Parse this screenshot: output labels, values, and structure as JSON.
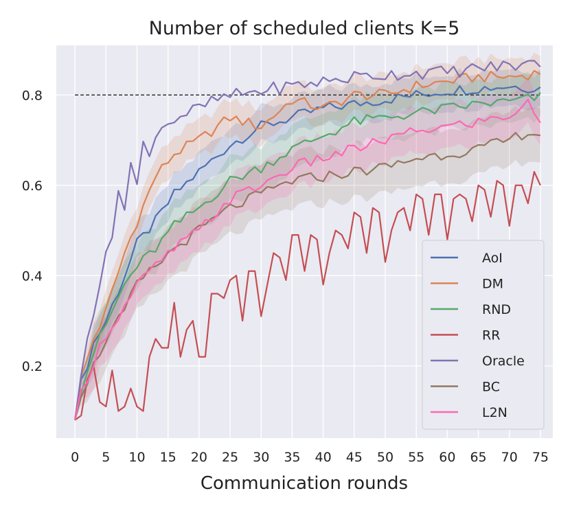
{
  "chart_data": {
    "type": "line",
    "title": "Number of scheduled clients K=5",
    "xlabel": "Communication rounds",
    "ylabel": "",
    "xlim": [
      -3,
      77
    ],
    "ylim": [
      0.04,
      0.91
    ],
    "xticks": [
      0,
      5,
      10,
      15,
      20,
      25,
      30,
      35,
      40,
      45,
      50,
      55,
      60,
      65,
      70,
      75
    ],
    "yticks": [
      0.2,
      0.4,
      0.6,
      0.8
    ],
    "ytick_labels": [
      "0.2",
      "0.4",
      "0.6",
      "0.8"
    ],
    "grid": true,
    "legend_position": "lower-right",
    "reference_line": {
      "y": 0.8,
      "style": "dashed",
      "color": "#222222"
    },
    "series": [
      {
        "name": "AoI",
        "color": "#4c72b0",
        "band": 0.04,
        "anchors": [
          [
            0,
            0.08
          ],
          [
            1,
            0.16
          ],
          [
            3,
            0.25
          ],
          [
            5,
            0.3
          ],
          [
            8,
            0.4
          ],
          [
            10,
            0.47
          ],
          [
            13,
            0.52
          ],
          [
            16,
            0.58
          ],
          [
            20,
            0.63
          ],
          [
            25,
            0.69
          ],
          [
            30,
            0.73
          ],
          [
            35,
            0.75
          ],
          [
            40,
            0.77
          ],
          [
            45,
            0.78
          ],
          [
            50,
            0.79
          ],
          [
            55,
            0.8
          ],
          [
            60,
            0.81
          ],
          [
            65,
            0.815
          ],
          [
            70,
            0.82
          ],
          [
            75,
            0.815
          ]
        ]
      },
      {
        "name": "DM",
        "color": "#dd8452",
        "band": 0.04,
        "anchors": [
          [
            0,
            0.08
          ],
          [
            1,
            0.17
          ],
          [
            3,
            0.26
          ],
          [
            5,
            0.32
          ],
          [
            8,
            0.45
          ],
          [
            10,
            0.52
          ],
          [
            13,
            0.62
          ],
          [
            16,
            0.67
          ],
          [
            20,
            0.7
          ],
          [
            25,
            0.75
          ],
          [
            30,
            0.73
          ],
          [
            35,
            0.79
          ],
          [
            40,
            0.77
          ],
          [
            45,
            0.8
          ],
          [
            50,
            0.8
          ],
          [
            55,
            0.82
          ],
          [
            60,
            0.83
          ],
          [
            65,
            0.84
          ],
          [
            70,
            0.84
          ],
          [
            75,
            0.85
          ]
        ]
      },
      {
        "name": "RND",
        "color": "#55a868",
        "band": 0.05,
        "anchors": [
          [
            0,
            0.08
          ],
          [
            1,
            0.15
          ],
          [
            3,
            0.23
          ],
          [
            5,
            0.29
          ],
          [
            8,
            0.38
          ],
          [
            10,
            0.42
          ],
          [
            13,
            0.46
          ],
          [
            16,
            0.51
          ],
          [
            20,
            0.55
          ],
          [
            25,
            0.61
          ],
          [
            30,
            0.64
          ],
          [
            35,
            0.68
          ],
          [
            40,
            0.71
          ],
          [
            45,
            0.74
          ],
          [
            50,
            0.75
          ],
          [
            55,
            0.76
          ],
          [
            60,
            0.77
          ],
          [
            65,
            0.78
          ],
          [
            70,
            0.785
          ],
          [
            75,
            0.795
          ]
        ]
      },
      {
        "name": "RR",
        "color": "#c44e52",
        "band": 0,
        "values": [
          0.08,
          0.09,
          0.17,
          0.2,
          0.12,
          0.11,
          0.19,
          0.1,
          0.11,
          0.15,
          0.11,
          0.1,
          0.22,
          0.26,
          0.24,
          0.24,
          0.34,
          0.22,
          0.28,
          0.3,
          0.22,
          0.22,
          0.36,
          0.36,
          0.35,
          0.39,
          0.4,
          0.3,
          0.41,
          0.41,
          0.31,
          0.38,
          0.45,
          0.44,
          0.39,
          0.49,
          0.49,
          0.41,
          0.49,
          0.48,
          0.38,
          0.45,
          0.5,
          0.49,
          0.46,
          0.54,
          0.53,
          0.45,
          0.55,
          0.54,
          0.43,
          0.5,
          0.54,
          0.55,
          0.5,
          0.58,
          0.57,
          0.49,
          0.58,
          0.58,
          0.48,
          0.57,
          0.58,
          0.57,
          0.52,
          0.6,
          0.59,
          0.53,
          0.61,
          0.6,
          0.51,
          0.6,
          0.6,
          0.56,
          0.63,
          0.6
        ]
      },
      {
        "name": "Oracle",
        "color": "#8172b3",
        "band": 0,
        "anchors": [
          [
            0,
            0.08
          ],
          [
            1,
            0.17
          ],
          [
            2,
            0.26
          ],
          [
            4,
            0.39
          ],
          [
            5,
            0.46
          ],
          [
            6,
            0.47
          ],
          [
            7,
            0.59
          ],
          [
            8,
            0.56
          ],
          [
            9,
            0.65
          ],
          [
            10,
            0.6
          ],
          [
            11,
            0.69
          ],
          [
            12,
            0.66
          ],
          [
            13,
            0.72
          ],
          [
            15,
            0.74
          ],
          [
            18,
            0.76
          ],
          [
            20,
            0.77
          ],
          [
            23,
            0.79
          ],
          [
            26,
            0.8
          ],
          [
            30,
            0.81
          ],
          [
            35,
            0.82
          ],
          [
            40,
            0.83
          ],
          [
            45,
            0.84
          ],
          [
            50,
            0.845
          ],
          [
            55,
            0.85
          ],
          [
            60,
            0.85
          ],
          [
            65,
            0.86
          ],
          [
            70,
            0.865
          ],
          [
            75,
            0.87
          ]
        ]
      },
      {
        "name": "BC",
        "color": "#937860",
        "band": 0.06,
        "anchors": [
          [
            0,
            0.08
          ],
          [
            1,
            0.14
          ],
          [
            3,
            0.2
          ],
          [
            5,
            0.26
          ],
          [
            8,
            0.32
          ],
          [
            10,
            0.38
          ],
          [
            13,
            0.42
          ],
          [
            16,
            0.46
          ],
          [
            20,
            0.5
          ],
          [
            25,
            0.55
          ],
          [
            30,
            0.58
          ],
          [
            35,
            0.61
          ],
          [
            40,
            0.62
          ],
          [
            45,
            0.63
          ],
          [
            50,
            0.64
          ],
          [
            55,
            0.66
          ],
          [
            60,
            0.67
          ],
          [
            65,
            0.68
          ],
          [
            70,
            0.7
          ],
          [
            73,
            0.72
          ],
          [
            75,
            0.71
          ]
        ]
      },
      {
        "name": "L2N",
        "color": "#ff66b4",
        "band": 0.05,
        "anchors": [
          [
            0,
            0.08
          ],
          [
            1,
            0.14
          ],
          [
            3,
            0.21
          ],
          [
            5,
            0.27
          ],
          [
            8,
            0.33
          ],
          [
            10,
            0.38
          ],
          [
            13,
            0.42
          ],
          [
            16,
            0.46
          ],
          [
            20,
            0.5
          ],
          [
            25,
            0.57
          ],
          [
            30,
            0.6
          ],
          [
            35,
            0.64
          ],
          [
            40,
            0.66
          ],
          [
            45,
            0.68
          ],
          [
            50,
            0.7
          ],
          [
            55,
            0.72
          ],
          [
            60,
            0.73
          ],
          [
            65,
            0.74
          ],
          [
            70,
            0.755
          ],
          [
            73,
            0.78
          ],
          [
            75,
            0.745
          ]
        ]
      }
    ]
  }
}
